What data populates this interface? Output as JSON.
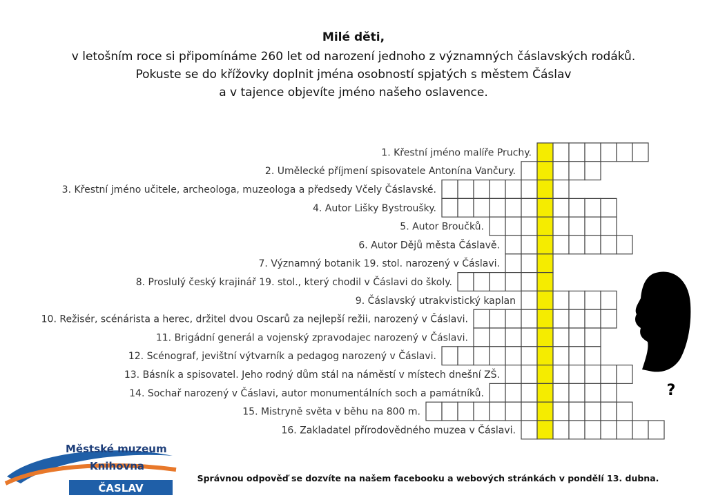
{
  "header": {
    "greeting": "Milé děti,",
    "lines": [
      "v letošním roce si připomínáme 260 let od narození jednoho z významných čáslavských rodáků.",
      "Pokuste se do křížovky doplnit jména osobností spjatých s městem Čáslav",
      "a v tajence objevíte jméno našeho oslavence."
    ]
  },
  "clues": [
    "1. Křestní jméno malíře Pruchy.",
    "2. Umělecké příjmení spisovatele Antonína Vančury.",
    "3. Křestní jméno učitele, archeologa, muzeologa a předsedy Včely Čáslavské.",
    "4. Autor Lišky Bystroušky.",
    "5. Autor Broučků.",
    "6. Autor Dějů města Čáslavě.",
    "7. Významný botanik 19. stol. narozený v Čáslavi.",
    "8. Proslulý český krajinář 19. stol., který chodil v Čáslavi do školy.",
    "9. Čáslavský utrakvistický kaplan",
    "10. Režisér, scénárista a herec, držitel dvou Oscarů za nejlepší režii, narozený v Čáslavi.",
    "11. Brigádní generál a vojenský zpravodajec narozený v Čáslavi.",
    "12. Scénograf, jevištní výtvarník a pedagog narozený v Čáslavi.",
    "13. Básník a spisovatel. Jeho rodný dům stál na náměstí v místech dnešní ZŠ.",
    "14. Sochař narozený v Čáslavi, autor monumentálních soch a památníků.",
    "15. Mistryně světa v běhu na 800 m.",
    "16. Zakladatel přírodovědného muzea v Čáslavi."
  ],
  "silhouette": {
    "mark": "?"
  },
  "logo": {
    "line1": "Městské muzeum",
    "line2": "Knihovna",
    "line3": "ČASLAV"
  },
  "footer": "Správnou odpověď se dozvíte na našem facebooku a webových stránkách v pondělí 13. dubna."
}
